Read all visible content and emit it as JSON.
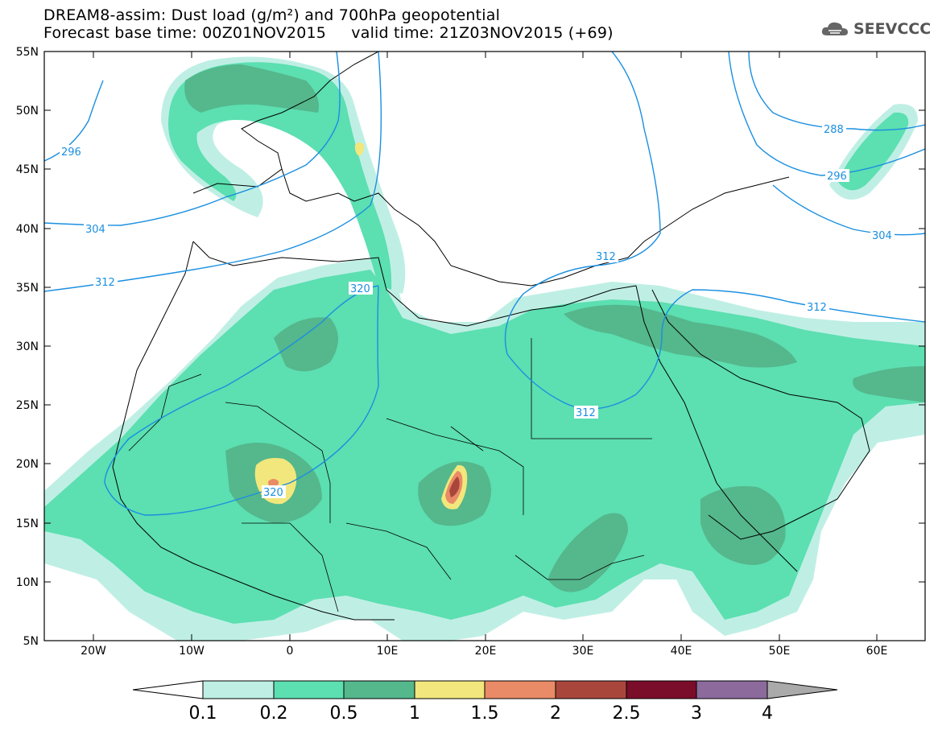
{
  "header": {
    "title_line1": "DREAM8-assim: Dust load (g/m²) and 700hPa geopotential",
    "title_line2": "Forecast base time: 00Z01NOV2015     valid time: 21Z03NOV2015 (+69)"
  },
  "logo": {
    "text": "SEEVCCC",
    "icon": "cloud-icon"
  },
  "map": {
    "lon_range": [
      -25,
      65
    ],
    "lat_range": [
      5,
      55
    ],
    "lon_ticks": [
      "20W",
      "10W",
      "0",
      "10E",
      "20E",
      "30E",
      "40E",
      "50E",
      "60E"
    ],
    "lat_ticks": [
      "55N",
      "50N",
      "45N",
      "40N",
      "35N",
      "30N",
      "25N",
      "20N",
      "15N",
      "10N",
      "5N"
    ],
    "contour_labels": [
      "296",
      "304",
      "312",
      "320",
      "320",
      "312",
      "312",
      "312",
      "288",
      "296",
      "304"
    ]
  },
  "colorbar": {
    "labels": [
      "0.1",
      "0.2",
      "0.5",
      "1",
      "1.5",
      "2",
      "2.5",
      "3",
      "4"
    ],
    "colors": [
      "#ffffff",
      "#bfefe4",
      "#5cdfb1",
      "#55b78c",
      "#f2e77c",
      "#e98b66",
      "#a9463c",
      "#7a0d2a",
      "#8c6a9c",
      "#aaaaaa"
    ]
  }
}
